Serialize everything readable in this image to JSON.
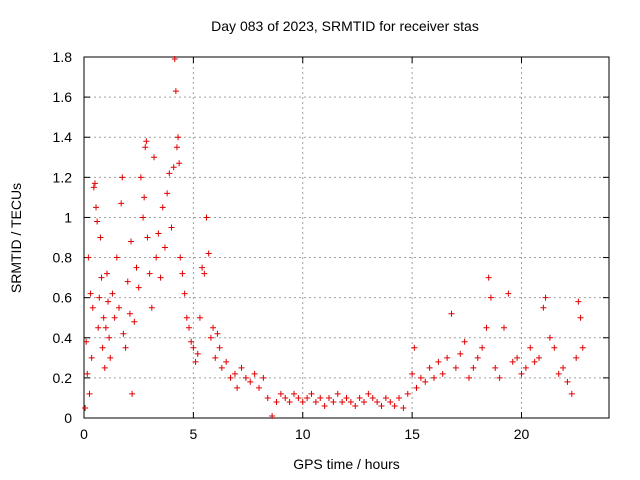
{
  "chart_data": {
    "type": "scatter",
    "title": "Day 083 of 2023, SRMTID for receiver stas",
    "xlabel": "GPS time / hours",
    "ylabel": "SRMTID / TECUs",
    "xlim": [
      0,
      24
    ],
    "ylim": [
      0,
      1.8
    ],
    "xticks": [
      0,
      5,
      10,
      15,
      20
    ],
    "yticks": [
      0,
      0.2,
      0.4,
      0.6,
      0.8,
      1,
      1.2,
      1.4,
      1.6,
      1.8
    ],
    "xtick_labels": [
      "0",
      "5",
      "10",
      "15",
      "20"
    ],
    "ytick_labels": [
      "0",
      "0.2",
      "0.4",
      "0.6",
      "0.8",
      "1",
      "1.2",
      "1.4",
      "1.6",
      "1.8"
    ],
    "grid": true,
    "marker": "+",
    "color": "#e00000",
    "series": [
      {
        "name": "SRMTID",
        "points": [
          [
            0.05,
            0.05
          ],
          [
            0.1,
            0.38
          ],
          [
            0.15,
            0.22
          ],
          [
            0.2,
            0.8
          ],
          [
            0.25,
            0.12
          ],
          [
            0.3,
            0.62
          ],
          [
            0.35,
            0.3
          ],
          [
            0.4,
            0.55
          ],
          [
            0.45,
            1.15
          ],
          [
            0.5,
            1.17
          ],
          [
            0.55,
            1.05
          ],
          [
            0.6,
            0.98
          ],
          [
            0.65,
            0.45
          ],
          [
            0.7,
            0.6
          ],
          [
            0.75,
            0.9
          ],
          [
            0.8,
            0.7
          ],
          [
            0.85,
            0.35
          ],
          [
            0.9,
            0.5
          ],
          [
            0.95,
            0.25
          ],
          [
            1.0,
            0.45
          ],
          [
            1.05,
            0.72
          ],
          [
            1.1,
            0.58
          ],
          [
            1.15,
            0.4
          ],
          [
            1.2,
            0.3
          ],
          [
            1.3,
            0.62
          ],
          [
            1.4,
            0.5
          ],
          [
            1.5,
            0.8
          ],
          [
            1.6,
            0.55
          ],
          [
            1.7,
            1.07
          ],
          [
            1.75,
            1.2
          ],
          [
            1.8,
            0.42
          ],
          [
            1.9,
            0.35
          ],
          [
            2.0,
            0.68
          ],
          [
            2.1,
            0.52
          ],
          [
            2.15,
            0.88
          ],
          [
            2.2,
            0.12
          ],
          [
            2.3,
            0.48
          ],
          [
            2.4,
            0.75
          ],
          [
            2.5,
            0.65
          ],
          [
            2.6,
            1.2
          ],
          [
            2.7,
            1.0
          ],
          [
            2.75,
            1.1
          ],
          [
            2.8,
            1.35
          ],
          [
            2.85,
            1.38
          ],
          [
            2.9,
            0.9
          ],
          [
            3.0,
            0.72
          ],
          [
            3.1,
            0.55
          ],
          [
            3.2,
            1.3
          ],
          [
            3.3,
            0.8
          ],
          [
            3.4,
            0.92
          ],
          [
            3.5,
            0.7
          ],
          [
            3.6,
            1.05
          ],
          [
            3.7,
            0.85
          ],
          [
            3.8,
            1.12
          ],
          [
            3.9,
            1.22
          ],
          [
            4.0,
            0.95
          ],
          [
            4.1,
            1.25
          ],
          [
            4.15,
            1.79
          ],
          [
            4.2,
            1.63
          ],
          [
            4.25,
            1.35
          ],
          [
            4.3,
            1.4
          ],
          [
            4.35,
            1.27
          ],
          [
            4.4,
            0.8
          ],
          [
            4.5,
            0.72
          ],
          [
            4.6,
            0.62
          ],
          [
            4.7,
            0.5
          ],
          [
            4.8,
            0.45
          ],
          [
            4.9,
            0.38
          ],
          [
            5.0,
            0.35
          ],
          [
            5.1,
            0.28
          ],
          [
            5.2,
            0.32
          ],
          [
            5.3,
            0.5
          ],
          [
            5.4,
            0.75
          ],
          [
            5.5,
            0.72
          ],
          [
            5.6,
            1.0
          ],
          [
            5.7,
            0.82
          ],
          [
            5.8,
            0.4
          ],
          [
            5.9,
            0.45
          ],
          [
            6.0,
            0.3
          ],
          [
            6.1,
            0.42
          ],
          [
            6.2,
            0.35
          ],
          [
            6.3,
            0.25
          ],
          [
            6.5,
            0.28
          ],
          [
            6.7,
            0.2
          ],
          [
            6.9,
            0.22
          ],
          [
            7.0,
            0.15
          ],
          [
            7.2,
            0.25
          ],
          [
            7.4,
            0.2
          ],
          [
            7.6,
            0.18
          ],
          [
            7.8,
            0.22
          ],
          [
            8.0,
            0.15
          ],
          [
            8.2,
            0.2
          ],
          [
            8.4,
            0.1
          ],
          [
            8.6,
            0.01
          ],
          [
            8.8,
            0.08
          ],
          [
            9.0,
            0.12
          ],
          [
            9.2,
            0.1
          ],
          [
            9.4,
            0.08
          ],
          [
            9.6,
            0.12
          ],
          [
            9.8,
            0.1
          ],
          [
            10.0,
            0.08
          ],
          [
            10.2,
            0.1
          ],
          [
            10.4,
            0.12
          ],
          [
            10.6,
            0.08
          ],
          [
            10.8,
            0.1
          ],
          [
            11.0,
            0.06
          ],
          [
            11.2,
            0.1
          ],
          [
            11.4,
            0.08
          ],
          [
            11.6,
            0.12
          ],
          [
            11.8,
            0.08
          ],
          [
            12.0,
            0.1
          ],
          [
            12.2,
            0.08
          ],
          [
            12.4,
            0.06
          ],
          [
            12.6,
            0.1
          ],
          [
            12.8,
            0.08
          ],
          [
            13.0,
            0.12
          ],
          [
            13.2,
            0.1
          ],
          [
            13.4,
            0.08
          ],
          [
            13.6,
            0.06
          ],
          [
            13.8,
            0.1
          ],
          [
            14.0,
            0.08
          ],
          [
            14.2,
            0.06
          ],
          [
            14.4,
            0.1
          ],
          [
            14.6,
            0.05
          ],
          [
            14.8,
            0.12
          ],
          [
            15.0,
            0.22
          ],
          [
            15.1,
            0.35
          ],
          [
            15.2,
            0.15
          ],
          [
            15.4,
            0.2
          ],
          [
            15.6,
            0.18
          ],
          [
            15.8,
            0.25
          ],
          [
            16.0,
            0.2
          ],
          [
            16.2,
            0.28
          ],
          [
            16.4,
            0.22
          ],
          [
            16.6,
            0.3
          ],
          [
            16.8,
            0.52
          ],
          [
            17.0,
            0.25
          ],
          [
            17.2,
            0.32
          ],
          [
            17.4,
            0.38
          ],
          [
            17.6,
            0.2
          ],
          [
            17.8,
            0.25
          ],
          [
            18.0,
            0.3
          ],
          [
            18.2,
            0.35
          ],
          [
            18.4,
            0.45
          ],
          [
            18.5,
            0.7
          ],
          [
            18.6,
            0.6
          ],
          [
            18.8,
            0.25
          ],
          [
            19.0,
            0.2
          ],
          [
            19.2,
            0.45
          ],
          [
            19.4,
            0.62
          ],
          [
            19.6,
            0.28
          ],
          [
            19.8,
            0.3
          ],
          [
            20.0,
            0.22
          ],
          [
            20.2,
            0.25
          ],
          [
            20.4,
            0.35
          ],
          [
            20.6,
            0.28
          ],
          [
            20.8,
            0.3
          ],
          [
            21.0,
            0.55
          ],
          [
            21.1,
            0.6
          ],
          [
            21.3,
            0.4
          ],
          [
            21.5,
            0.35
          ],
          [
            21.7,
            0.22
          ],
          [
            21.9,
            0.25
          ],
          [
            22.1,
            0.18
          ],
          [
            22.3,
            0.12
          ],
          [
            22.5,
            0.3
          ],
          [
            22.6,
            0.58
          ],
          [
            22.7,
            0.5
          ],
          [
            22.8,
            0.35
          ]
        ]
      }
    ]
  }
}
